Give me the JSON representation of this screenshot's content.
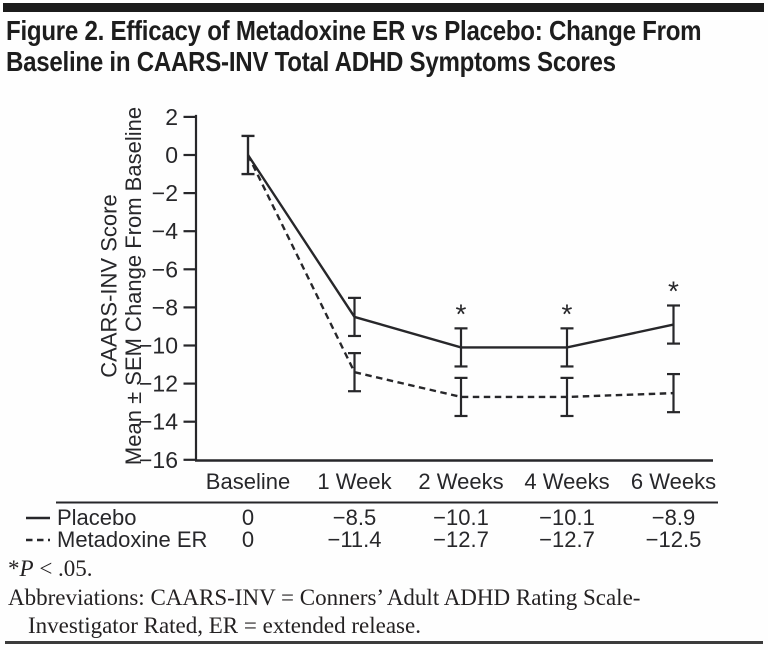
{
  "figure": {
    "title_lines": [
      "Figure 2. Efficacy of Metadoxine ER vs Placebo: Change From",
      "Baseline in CAARS-INV Total ADHD Symptoms Scores"
    ]
  },
  "chart_data": {
    "type": "line",
    "categories": [
      "Baseline",
      "1 Week",
      "2 Weeks",
      "4 Weeks",
      "6 Weeks"
    ],
    "series": [
      {
        "name": "Placebo",
        "line_style": "solid",
        "values": [
          0,
          -8.5,
          -10.1,
          -10.1,
          -8.9
        ],
        "sem": [
          1.0,
          1.0,
          1.0,
          1.0,
          1.0
        ],
        "significant": [
          false,
          false,
          true,
          true,
          true
        ]
      },
      {
        "name": "Metadoxine ER",
        "line_style": "dashed",
        "values": [
          0,
          -11.4,
          -12.7,
          -12.7,
          -12.5
        ],
        "sem": [
          1.0,
          1.0,
          1.0,
          1.0,
          1.0
        ],
        "significant": [
          false,
          false,
          false,
          false,
          false
        ]
      }
    ],
    "ylabel_lines": [
      "CAARS-INV Score",
      "Mean ± SEM Change From Baseline"
    ],
    "ylim": [
      -16,
      2
    ],
    "ytick_step": 2,
    "sig_symbol": "*",
    "legend_position": "bottom-left-table",
    "grid": "off"
  },
  "footnotes": {
    "sig": {
      "prefix": "*",
      "italic": "P",
      "rest": " < .05."
    },
    "abbrev_lines": [
      "Abbreviations: CAARS-INV = Conners’ Adult ADHD Rating Scale-",
      "Investigator Rated, ER = extended release."
    ]
  },
  "colors": {
    "ink": "#27272a",
    "title_bar": "#1b1b1b",
    "rule": "#3b3b3b",
    "background": "#fefefe"
  }
}
